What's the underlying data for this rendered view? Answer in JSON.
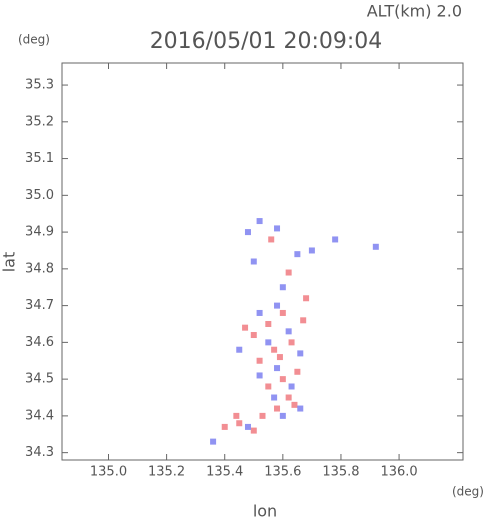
{
  "chart_data": {
    "type": "scatter",
    "title": "2016/05/01 20:09:04",
    "subtitle": "ALT(km) 2.0",
    "x_label": "lon",
    "y_label": "lat",
    "x_unit": "(deg)",
    "y_unit": "(deg)",
    "xlim": [
      134.84,
      136.22
    ],
    "ylim": [
      34.28,
      35.36
    ],
    "xticks": [
      {
        "value": 135.0,
        "label": "135.0"
      },
      135.2,
      135.4,
      135.6,
      135.8,
      {
        "value": 136.0,
        "label": "136.0"
      }
    ],
    "yticks": [
      34.3,
      34.4,
      34.5,
      34.6,
      34.7,
      34.8,
      34.9,
      {
        "value": 35.0,
        "label": "35.0"
      },
      35.1,
      35.2,
      35.3
    ],
    "series": [
      {
        "color": "#f07a80",
        "x": [
          135.5,
          135.45,
          135.53,
          135.58,
          135.62,
          135.55,
          135.6,
          135.65,
          135.52,
          135.57,
          135.63,
          135.5,
          135.55,
          135.67,
          135.6,
          135.47,
          135.56,
          135.62,
          135.68,
          135.44,
          135.4,
          135.64,
          135.59
        ],
        "y": [
          34.36,
          34.38,
          34.4,
          34.42,
          34.45,
          34.48,
          34.5,
          34.52,
          34.55,
          34.58,
          34.6,
          34.62,
          34.65,
          34.66,
          34.68,
          34.64,
          34.88,
          34.79,
          34.72,
          34.4,
          34.37,
          34.43,
          34.56
        ]
      },
      {
        "color": "#7c80f0",
        "x": [
          135.36,
          135.48,
          135.6,
          135.66,
          135.57,
          135.63,
          135.52,
          135.58,
          135.55,
          135.62,
          135.52,
          135.58,
          135.48,
          135.52,
          135.58,
          135.7,
          135.78,
          135.92,
          135.65,
          135.5,
          135.6,
          135.45,
          135.66
        ],
        "y": [
          34.33,
          34.37,
          34.4,
          34.42,
          34.45,
          34.48,
          34.51,
          34.53,
          34.6,
          34.63,
          34.68,
          34.7,
          34.9,
          34.93,
          34.91,
          34.85,
          34.88,
          34.86,
          34.84,
          34.82,
          34.75,
          34.58,
          34.57
        ]
      }
    ]
  }
}
